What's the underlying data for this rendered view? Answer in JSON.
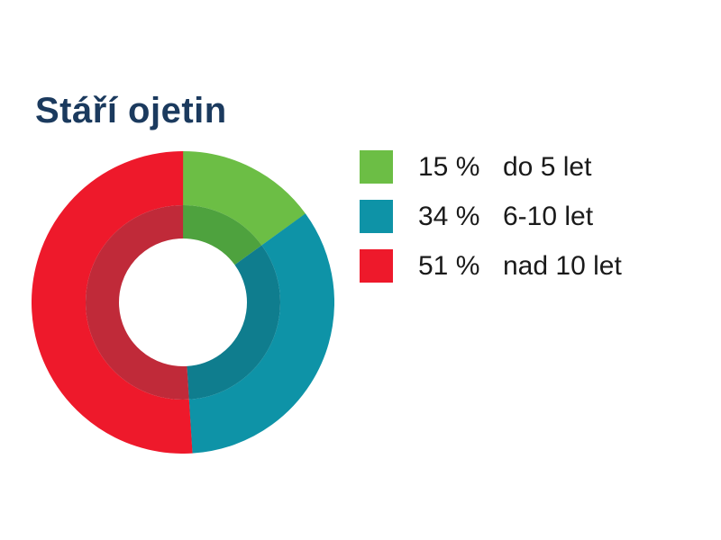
{
  "title": {
    "text": "Stáří ojetin",
    "color": "#1b3a5e"
  },
  "chart_data": {
    "type": "pie",
    "variant": "donut-double-ring",
    "title": "Stáří ojetin",
    "unit": "%",
    "total": 100,
    "start_angle_deg": -90,
    "direction": "clockwise",
    "legend_position": "right",
    "segments": [
      {
        "label": "do 5 let",
        "value": 15,
        "display_value": "15 %",
        "color": "#6cbe45",
        "inner_color": "#4ea23e"
      },
      {
        "label": "6-10 let",
        "value": 34,
        "display_value": "34 %",
        "color": "#0e93a7",
        "inner_color": "#0f7d8e"
      },
      {
        "label": "nad 10 let",
        "value": 51,
        "display_value": "51 %",
        "color": "#ee192b",
        "inner_color": "#c02a39"
      }
    ],
    "geometry": {
      "outer_radius": 168,
      "mid_radius": 108,
      "hole_radius": 71
    }
  },
  "legend": {
    "text_color": "#1a1a1a"
  }
}
